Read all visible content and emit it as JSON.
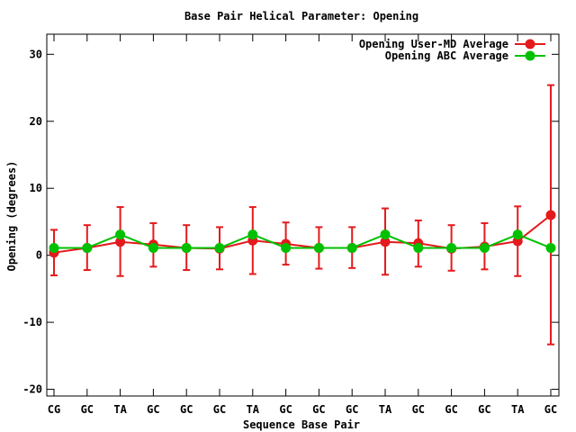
{
  "chart_data": {
    "type": "line",
    "title": "Base Pair Helical Parameter: Opening",
    "xlabel": "Sequence Base Pair",
    "ylabel": "Opening (degrees)",
    "categories": [
      "CG",
      "GC",
      "TA",
      "GC",
      "GC",
      "GC",
      "TA",
      "GC",
      "GC",
      "GC",
      "TA",
      "GC",
      "GC",
      "GC",
      "TA",
      "GC"
    ],
    "ylim": [
      -21,
      33
    ],
    "yticks": [
      -20,
      -10,
      0,
      10,
      20,
      30
    ],
    "ytick_labels": [
      "-20",
      "-10",
      "0",
      "10",
      "20",
      "30"
    ],
    "legend_position": "top-right",
    "series": [
      {
        "name": "Opening User-MD Average",
        "color": "#e41a1c",
        "values": [
          0.4,
          1.1,
          2.0,
          1.6,
          1.1,
          1.0,
          2.2,
          1.7,
          1.1,
          1.1,
          2.0,
          1.8,
          1.0,
          1.3,
          2.1,
          6.0
        ],
        "err_low": [
          -3.0,
          -2.2,
          -3.1,
          -1.7,
          -2.2,
          -2.1,
          -2.8,
          -1.4,
          -2.0,
          -1.9,
          -2.9,
          -1.7,
          -2.3,
          -2.1,
          -3.1,
          -13.3
        ],
        "err_high": [
          3.8,
          4.5,
          7.2,
          4.8,
          4.5,
          4.2,
          7.2,
          4.9,
          4.2,
          4.2,
          7.0,
          5.2,
          4.5,
          4.8,
          7.3,
          25.4
        ]
      },
      {
        "name": "Opening ABC Average",
        "color": "#00c000",
        "values": [
          1.1,
          1.1,
          3.1,
          1.1,
          1.1,
          1.1,
          3.1,
          1.1,
          1.1,
          1.1,
          3.1,
          1.1,
          1.1,
          1.1,
          3.1,
          1.1
        ]
      }
    ]
  }
}
